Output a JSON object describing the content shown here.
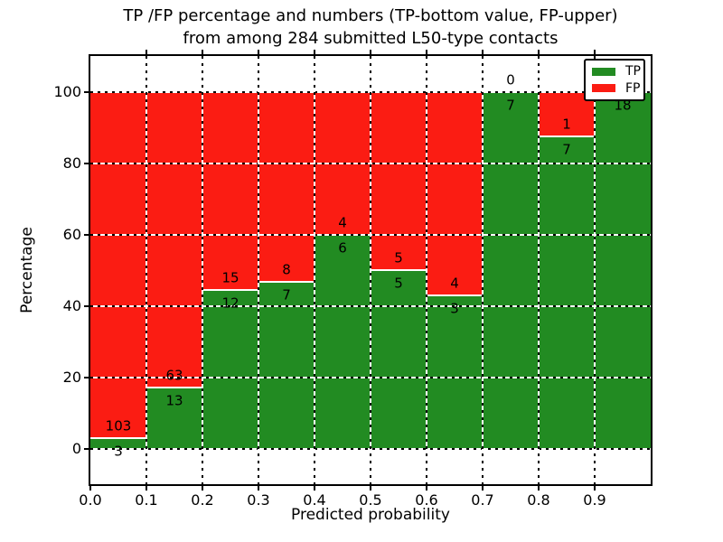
{
  "figure": {
    "title_line1": "TP /FP percentage and numbers (TP-bottom value, FP-upper)",
    "title_line2": "from among 284 submitted L50-type contacts"
  },
  "legend": {
    "position": "upper right",
    "items": [
      {
        "label": "TP",
        "color": "#228b22"
      },
      {
        "label": "FP",
        "color": "#fb1c13"
      }
    ]
  },
  "chart_data": {
    "type": "bar",
    "variant": "stacked-normalized-percent",
    "title": "TP /FP percentage and numbers (TP-bottom value, FP-upper) from among 284 submitted L50-type contacts",
    "xlabel": "Predicted probability",
    "ylabel": "Percentage",
    "total_contacts": 284,
    "xlim": [
      0.0,
      1.0
    ],
    "ylim": [
      -10,
      110
    ],
    "bin_width": 0.1,
    "x_tick_labels": [
      "0.0",
      "0.1",
      "0.2",
      "0.3",
      "0.4",
      "0.5",
      "0.6",
      "0.7",
      "0.8",
      "0.9"
    ],
    "y_ticks": [
      0,
      20,
      40,
      60,
      80,
      100
    ],
    "grid": {
      "on": true,
      "style": "dotted"
    },
    "legend_position": "upper right",
    "colors": {
      "TP": "#228b22",
      "FP": "#fb1c13"
    },
    "bins": [
      {
        "x_start": 0.0,
        "tp": 3,
        "fp": 103
      },
      {
        "x_start": 0.1,
        "tp": 13,
        "fp": 63
      },
      {
        "x_start": 0.2,
        "tp": 12,
        "fp": 15
      },
      {
        "x_start": 0.3,
        "tp": 7,
        "fp": 8
      },
      {
        "x_start": 0.4,
        "tp": 6,
        "fp": 4
      },
      {
        "x_start": 0.5,
        "tp": 5,
        "fp": 5
      },
      {
        "x_start": 0.6,
        "tp": 3,
        "fp": 4
      },
      {
        "x_start": 0.7,
        "tp": 7,
        "fp": 0
      },
      {
        "x_start": 0.8,
        "tp": 7,
        "fp": 1
      },
      {
        "x_start": 0.9,
        "tp": 18,
        "fp": 0
      }
    ]
  }
}
